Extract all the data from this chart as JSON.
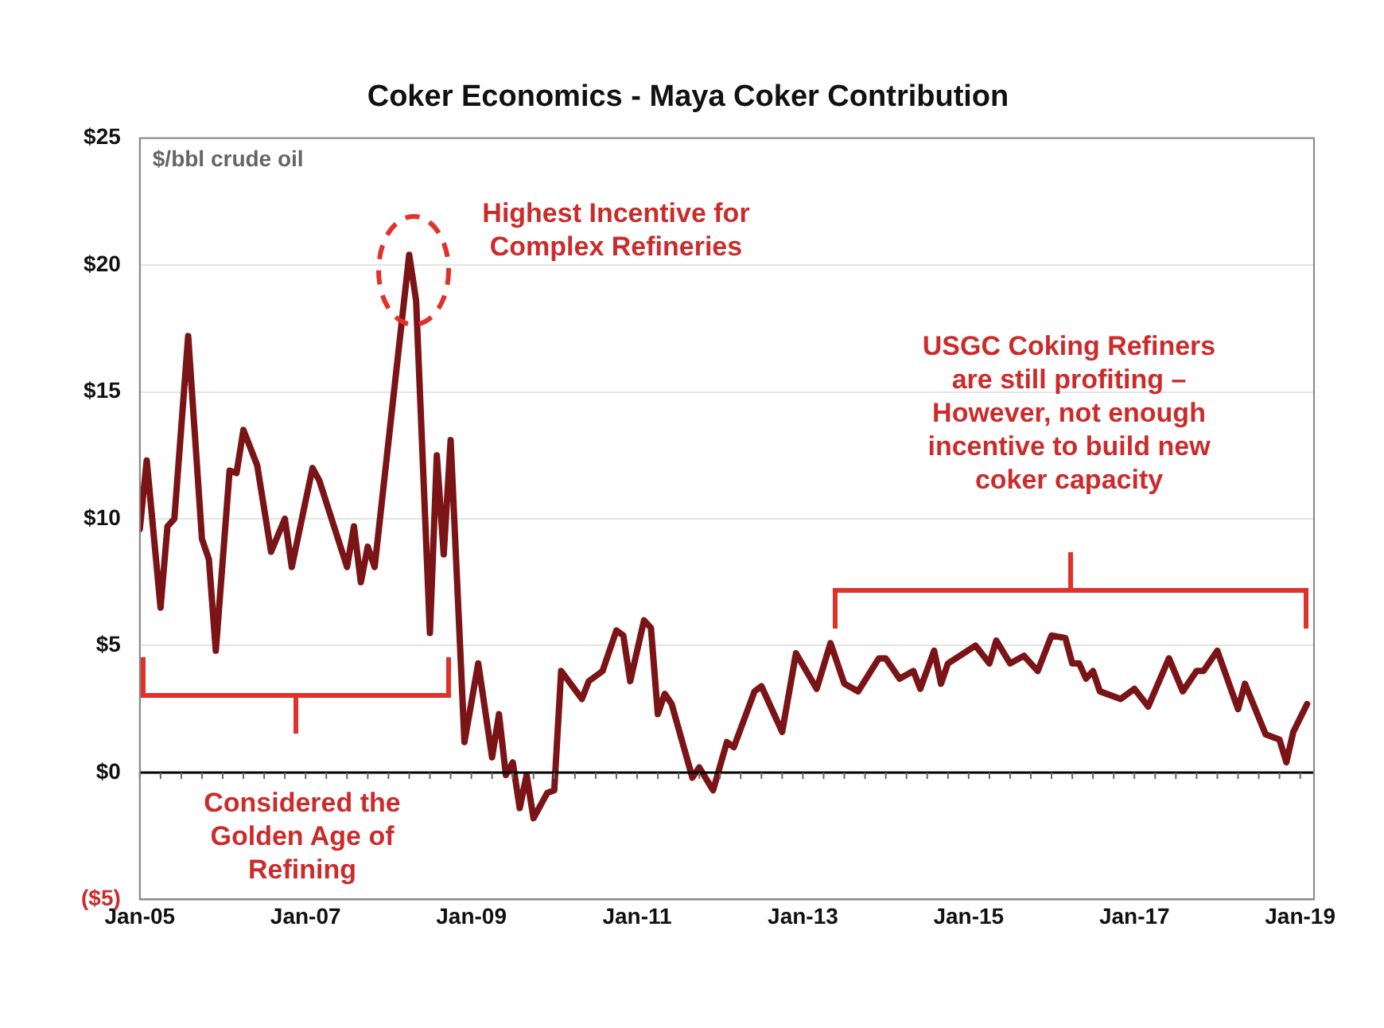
{
  "chart_data": {
    "type": "line",
    "title": "Coker Economics - Maya Coker Contribution",
    "ylabel": "$/bbl crude oil",
    "x": [
      "2005-01",
      "2005-02",
      "2005-04",
      "2005-05",
      "2005-06",
      "2005-08",
      "2005-10",
      "2005-11",
      "2005-12",
      "2006-02",
      "2006-03",
      "2006-04",
      "2006-06",
      "2006-08",
      "2006-10",
      "2006-11",
      "2007-02",
      "2007-03",
      "2007-07",
      "2007-08",
      "2007-09",
      "2007-10",
      "2007-11",
      "2008-02",
      "2008-04",
      "2008-05",
      "2008-07",
      "2008-08",
      "2008-09",
      "2008-10",
      "2008-12",
      "2009-02",
      "2009-04",
      "2009-05",
      "2009-06",
      "2009-07",
      "2009-08",
      "2009-09",
      "2009-10",
      "2009-12",
      "2010-01",
      "2010-02",
      "2010-05",
      "2010-06",
      "2010-08",
      "2010-10",
      "2010-11",
      "2010-12",
      "2011-02",
      "2011-03",
      "2011-04",
      "2011-05",
      "2011-06",
      "2011-09",
      "2011-10",
      "2011-12",
      "2012-02",
      "2012-03",
      "2012-06",
      "2012-07",
      "2012-10",
      "2012-12",
      "2013-03",
      "2013-05",
      "2013-07",
      "2013-09",
      "2013-12",
      "2014-01",
      "2014-03",
      "2014-05",
      "2014-06",
      "2014-08",
      "2014-09",
      "2014-10",
      "2015-02",
      "2015-04",
      "2015-05",
      "2015-07",
      "2015-09",
      "2015-11",
      "2016-01",
      "2016-03",
      "2016-04",
      "2016-05",
      "2016-06",
      "2016-07",
      "2016-08",
      "2016-11",
      "2017-01",
      "2017-03",
      "2017-06",
      "2017-08",
      "2017-10",
      "2017-11",
      "2018-01",
      "2018-04",
      "2018-05",
      "2018-08",
      "2018-10",
      "2018-11",
      "2018-12",
      "2019-02"
    ],
    "series": [
      {
        "color": "#7b1416",
        "values": [
          9.6,
          12.3,
          6.5,
          9.7,
          10.0,
          17.2,
          9.2,
          8.4,
          4.8,
          11.9,
          11.8,
          13.5,
          12.1,
          8.7,
          10.0,
          8.1,
          12.0,
          11.5,
          8.1,
          9.7,
          7.5,
          8.9,
          8.1,
          15.5,
          20.4,
          18.6,
          5.5,
          12.5,
          8.6,
          13.1,
          1.2,
          4.3,
          0.6,
          2.3,
          -0.1,
          0.4,
          -1.4,
          -0.1,
          -1.8,
          -0.8,
          -0.7,
          4.0,
          2.9,
          3.6,
          4.0,
          5.6,
          5.4,
          3.6,
          6.0,
          5.7,
          2.3,
          3.1,
          2.7,
          -0.2,
          0.2,
          -0.7,
          1.2,
          1.0,
          3.2,
          3.4,
          1.6,
          4.7,
          3.3,
          5.1,
          3.5,
          3.2,
          4.5,
          4.5,
          3.7,
          4.0,
          3.3,
          4.8,
          3.5,
          4.3,
          5.0,
          4.3,
          5.2,
          4.3,
          4.6,
          4.0,
          5.4,
          5.3,
          4.3,
          4.3,
          3.7,
          4.0,
          3.2,
          2.9,
          3.3,
          2.6,
          4.5,
          3.2,
          4.0,
          4.0,
          4.8,
          2.5,
          3.5,
          1.5,
          1.3,
          0.4,
          1.6,
          2.7
        ]
      }
    ],
    "xlim": [
      "2005-01",
      "2019-03"
    ],
    "xticks": [
      {
        "value": "2005-01",
        "label": "Jan-05"
      },
      {
        "value": "2007-01",
        "label": "Jan-07"
      },
      {
        "value": "2009-01",
        "label": "Jan-09"
      },
      {
        "value": "2011-01",
        "label": "Jan-11"
      },
      {
        "value": "2013-01",
        "label": "Jan-13"
      },
      {
        "value": "2015-01",
        "label": "Jan-15"
      },
      {
        "value": "2017-01",
        "label": "Jan-17"
      },
      {
        "value": "2019-01",
        "label": "Jan-19"
      }
    ],
    "ylim": [
      -5,
      25
    ],
    "yticks": [
      {
        "value": -5,
        "label": "($5)"
      },
      {
        "value": 0,
        "label": "$0"
      },
      {
        "value": 5,
        "label": "$5"
      },
      {
        "value": 10,
        "label": "$10"
      },
      {
        "value": 15,
        "label": "$15"
      },
      {
        "value": 20,
        "label": "$20"
      },
      {
        "value": 25,
        "label": "$25"
      }
    ],
    "grid": "y",
    "legend": false,
    "marker": "none",
    "line_style": "solid",
    "ref_lines": [
      {
        "axis": "y",
        "value": 0,
        "color": "#000000"
      }
    ],
    "annotations": [
      {
        "text": "Highest Incentive for Complex Refineries",
        "x": "2008-04",
        "y": 20.4
      },
      "USGC Coking Refiners are still profiting – However, not enough incentive to build new coker capacity",
      "Considered the Golden Age of Refining"
    ]
  }
}
